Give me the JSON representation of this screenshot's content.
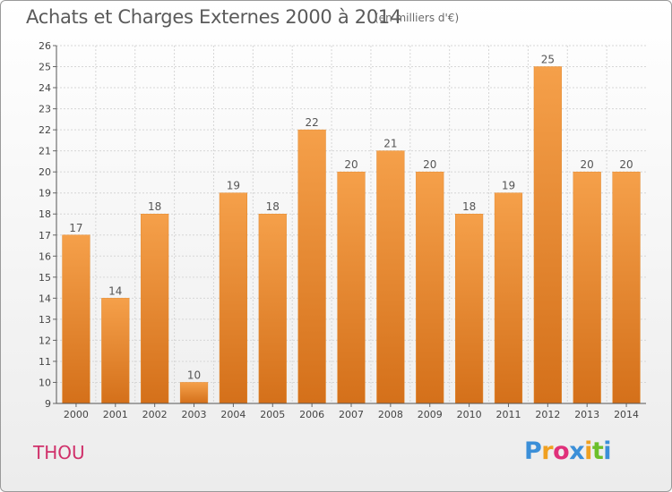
{
  "header": {
    "title": "Achats et Charges Externes 2000 à 2014",
    "subtitle": "(en milliers d'€)"
  },
  "footer": {
    "place": "THOU",
    "logo": {
      "letters": [
        "P",
        "r",
        "o",
        "x",
        "i",
        "t",
        "i"
      ],
      "colors": [
        "#3b8fd8",
        "#f0a020",
        "#e0307a",
        "#3b8fd8",
        "#f0a020",
        "#6cbf2a",
        "#3b8fd8"
      ]
    }
  },
  "chart_data": {
    "type": "bar",
    "categories": [
      "2000",
      "2001",
      "2002",
      "2003",
      "2004",
      "2005",
      "2006",
      "2007",
      "2008",
      "2009",
      "2010",
      "2011",
      "2012",
      "2013",
      "2014"
    ],
    "values": [
      17,
      14,
      18,
      10,
      19,
      18,
      22,
      20,
      21,
      20,
      18,
      19,
      25,
      20,
      20
    ],
    "ylim": [
      9,
      26
    ],
    "yticks": [
      9,
      10,
      11,
      12,
      13,
      14,
      15,
      16,
      17,
      18,
      19,
      20,
      21,
      22,
      23,
      24,
      25,
      26
    ],
    "grid": true,
    "bar_color_top": "#f5a04a",
    "bar_color_bottom": "#d4701a"
  }
}
